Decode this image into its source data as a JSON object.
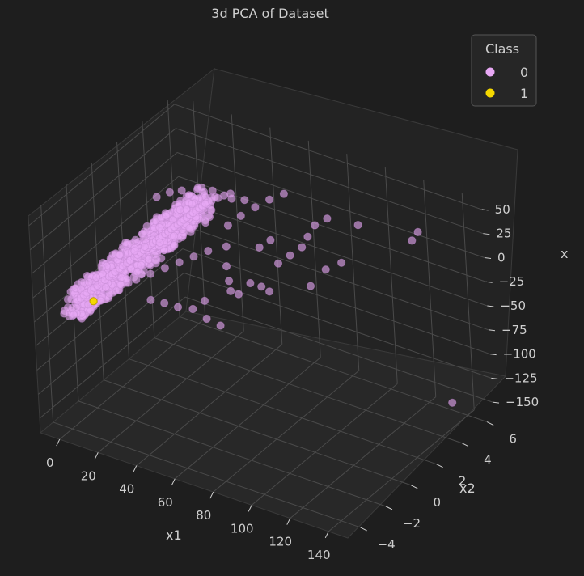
{
  "chart_data": {
    "type": "scatter",
    "title": "3d PCA of Dataset",
    "xlabel": "x1",
    "ylabel": "x2",
    "zlabel": "x",
    "xlim": [
      -10,
      150
    ],
    "ylim": [
      -5,
      6.5
    ],
    "zlim": [
      -165,
      60
    ],
    "x_ticks": [
      "0",
      "20",
      "40",
      "60",
      "80",
      "100",
      "120",
      "140"
    ],
    "y_ticks": [
      "−4",
      "−2",
      "0",
      "2",
      "4",
      "6"
    ],
    "z_ticks": [
      "50",
      "25",
      "0",
      "−25",
      "−50",
      "−75",
      "−100",
      "−125",
      "−150"
    ],
    "grid": true,
    "legend": {
      "title": "Class",
      "placement": "top-right",
      "entries": [
        {
          "label": "0",
          "color": "#e8a8f5"
        },
        {
          "label": "1",
          "color": "#f5d800"
        }
      ]
    },
    "series": [
      {
        "name": "0",
        "color": "#e8a8f5",
        "points": [
          [
            0,
            -3.5,
            -45
          ],
          [
            1,
            -3.2,
            -40
          ],
          [
            2,
            -3.1,
            -38
          ],
          [
            3,
            -3.0,
            -35
          ],
          [
            4,
            -2.9,
            -33
          ],
          [
            5,
            -2.7,
            -32
          ],
          [
            6,
            -2.6,
            -30
          ],
          [
            7,
            -2.5,
            -28
          ],
          [
            8,
            -2.3,
            -26
          ],
          [
            9,
            -2.2,
            -24
          ],
          [
            10,
            -2.0,
            -22
          ],
          [
            11,
            -1.9,
            -20
          ],
          [
            12,
            -1.8,
            -18
          ],
          [
            13,
            -1.6,
            -16
          ],
          [
            14,
            -1.5,
            -14
          ],
          [
            15,
            -1.3,
            -12
          ],
          [
            16,
            -1.2,
            -10
          ],
          [
            17,
            -1.0,
            -8
          ],
          [
            18,
            -0.9,
            -6
          ],
          [
            19,
            -0.8,
            -4
          ],
          [
            20,
            -0.7,
            -2
          ],
          [
            21,
            -0.6,
            0
          ],
          [
            22,
            -0.5,
            2
          ],
          [
            23,
            -0.4,
            4
          ],
          [
            24,
            -0.3,
            6
          ],
          [
            25,
            -0.2,
            8
          ],
          [
            26,
            -0.1,
            10
          ],
          [
            27,
            0.0,
            12
          ],
          [
            28,
            0.1,
            14
          ],
          [
            29,
            0.2,
            16
          ],
          [
            30,
            0.3,
            18
          ],
          [
            31,
            0.4,
            20
          ],
          [
            32,
            0.5,
            22
          ],
          [
            33,
            0.6,
            24
          ],
          [
            34,
            0.7,
            26
          ],
          [
            35,
            0.8,
            28
          ],
          [
            36,
            0.9,
            30
          ],
          [
            37,
            1.0,
            32
          ],
          [
            38,
            1.1,
            34
          ],
          [
            39,
            1.2,
            36
          ],
          [
            40,
            1.3,
            38
          ],
          [
            42,
            1.5,
            40
          ],
          [
            44,
            1.7,
            42
          ],
          [
            46,
            1.9,
            44
          ],
          [
            48,
            2.1,
            45
          ],
          [
            10,
            -2.3,
            -30
          ],
          [
            15,
            -1.9,
            -28
          ],
          [
            20,
            -1.4,
            -25
          ],
          [
            25,
            -1.0,
            -20
          ],
          [
            30,
            -0.6,
            -15
          ],
          [
            35,
            -0.2,
            -10
          ],
          [
            40,
            0.2,
            -5
          ],
          [
            45,
            0.6,
            0
          ],
          [
            12,
            -1.4,
            -5
          ],
          [
            18,
            -1.1,
            0
          ],
          [
            22,
            -0.9,
            5
          ],
          [
            28,
            -0.6,
            10
          ],
          [
            33,
            -0.2,
            16
          ],
          [
            38,
            0.3,
            22
          ],
          [
            43,
            0.8,
            28
          ],
          [
            50,
            1.5,
            20
          ],
          [
            52,
            1.0,
            5
          ],
          [
            55,
            0.5,
            -8
          ],
          [
            58,
            0.2,
            -18
          ],
          [
            60,
            0.0,
            -25
          ],
          [
            62,
            0.3,
            -30
          ],
          [
            65,
            0.8,
            -22
          ],
          [
            68,
            1.2,
            -28
          ],
          [
            70,
            1.5,
            -35
          ],
          [
            55,
            1.8,
            30
          ],
          [
            60,
            2.2,
            38
          ],
          [
            65,
            2.6,
            45
          ],
          [
            70,
            3.0,
            50
          ],
          [
            48,
            -0.3,
            -40
          ],
          [
            45,
            -0.8,
            -45
          ],
          [
            40,
            -1.2,
            -42
          ],
          [
            35,
            -1.5,
            -38
          ],
          [
            30,
            -1.8,
            -35
          ],
          [
            50,
            -0.5,
            -55
          ],
          [
            55,
            -0.2,
            -62
          ],
          [
            72,
            2.0,
            -10
          ],
          [
            75,
            2.5,
            -5
          ],
          [
            78,
            3.0,
            0
          ],
          [
            80,
            3.2,
            10
          ],
          [
            82,
            3.5,
            20
          ],
          [
            70,
            1.8,
            15
          ],
          [
            66,
            1.5,
            8
          ],
          [
            56,
            2.0,
            45
          ],
          [
            52,
            1.6,
            48
          ],
          [
            46,
            1.2,
            50
          ],
          [
            90,
            3.0,
            -15
          ],
          [
            95,
            3.5,
            -10
          ],
          [
            85,
            2.5,
            -30
          ],
          [
            100,
            4.2,
            25
          ],
          [
            88,
            3.6,
            30
          ],
          [
            20,
            0.5,
            40
          ],
          [
            25,
            0.8,
            45
          ],
          [
            30,
            1.0,
            48
          ],
          [
            140,
            3.0,
            58
          ],
          [
            138,
            2.8,
            50
          ],
          [
            130,
            6.3,
            -162
          ]
        ]
      },
      {
        "name": "1",
        "color": "#f5d800",
        "points": [
          [
            8,
            -3.0,
            -38
          ]
        ]
      }
    ]
  }
}
